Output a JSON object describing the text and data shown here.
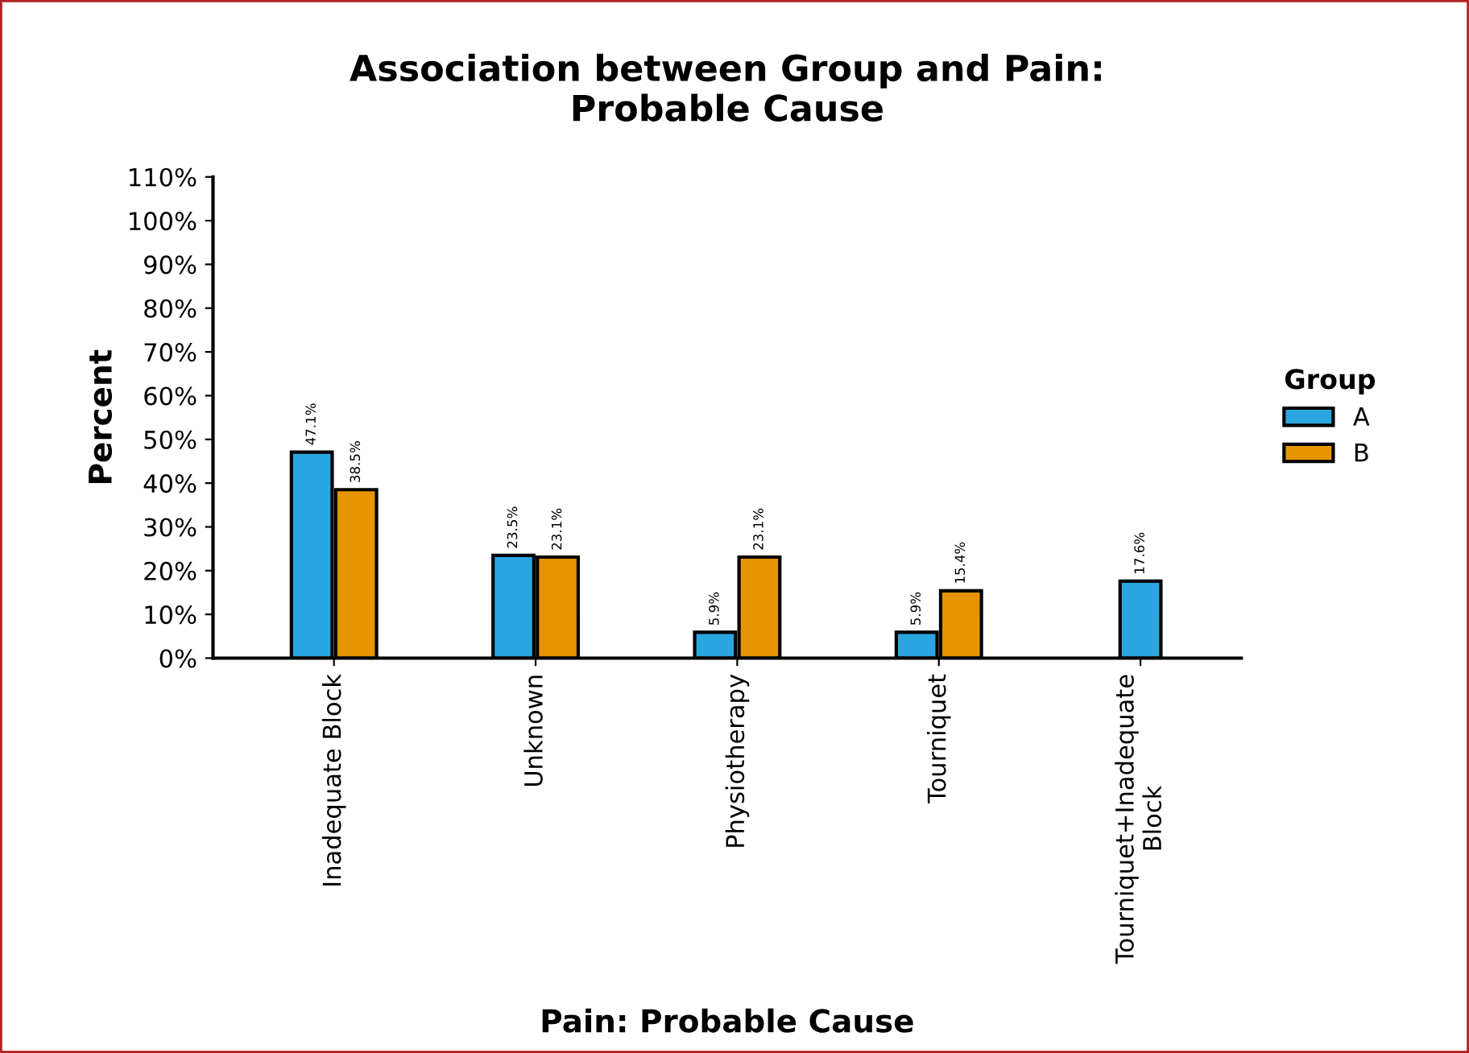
{
  "chart_data": {
    "type": "bar",
    "title": "Association between Group and Pain:\nProbable Cause",
    "xlabel": "Pain: Probable Cause",
    "ylabel": "Percent",
    "legend_title": "Group",
    "categories": [
      "Inadequate Block",
      "Unknown",
      "Physiotherapy",
      "Tourniquet",
      "Tourniquet+Inadequate\nBlock"
    ],
    "series": [
      {
        "name": "A",
        "color": "#29a6e0",
        "values": [
          47.1,
          23.5,
          5.9,
          5.9,
          17.6
        ],
        "value_labels": [
          "47.1%",
          "23.5%",
          "5.9%",
          "5.9%",
          "17.6%"
        ]
      },
      {
        "name": "B",
        "color": "#e69500",
        "values": [
          38.5,
          23.1,
          23.1,
          15.4,
          null
        ],
        "value_labels": [
          "38.5%",
          "23.1%",
          "23.1%",
          "15.4%",
          null
        ]
      }
    ],
    "ylim": [
      0,
      110
    ],
    "yticks": [
      {
        "value": 0,
        "label": "0%"
      },
      {
        "value": 10,
        "label": "10%"
      },
      {
        "value": 20,
        "label": "20%"
      },
      {
        "value": 30,
        "label": "30%"
      },
      {
        "value": 40,
        "label": "40%"
      },
      {
        "value": 50,
        "label": "50%"
      },
      {
        "value": 60,
        "label": "60%"
      },
      {
        "value": 70,
        "label": "70%"
      },
      {
        "value": 80,
        "label": "80%"
      },
      {
        "value": 90,
        "label": "90%"
      },
      {
        "value": 100,
        "label": "100%"
      },
      {
        "value": 110,
        "label": "110%"
      }
    ],
    "grid": false,
    "legend": "right"
  }
}
